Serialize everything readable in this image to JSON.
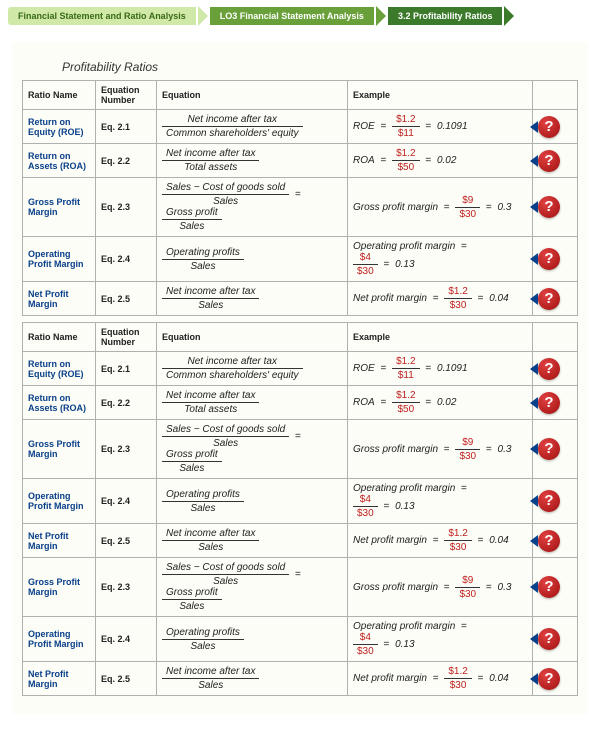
{
  "breadcrumb": {
    "item1": "Financial Statement and Ratio Analysis",
    "item2": "LO3  Financial Statement Analysis",
    "item3": "3.2  Profitability Ratios"
  },
  "section_title": "Profitability Ratios",
  "headers": {
    "name": "Ratio Name",
    "eqnum": "Equation Number",
    "eq": "Equation",
    "ex": "Example"
  },
  "rows": {
    "roe": {
      "name": "Return on Equity (ROE)",
      "eqnum": "Eq. 2.1",
      "eq_num": "Net income after tax",
      "eq_den": "Common shareholders' equity",
      "ex_label": "ROE",
      "ex_num": "$1.2",
      "ex_den": "$11",
      "ex_val": "0.1091"
    },
    "roa": {
      "name": "Return on Assets (ROA)",
      "eqnum": "Eq. 2.2",
      "eq_num": "Net income after tax",
      "eq_den": "Total assets",
      "ex_label": "ROA",
      "ex_num": "$1.2",
      "ex_den": "$50",
      "ex_val": "0.02"
    },
    "gpm": {
      "name": "Gross Profit Margin",
      "eqnum": "Eq. 2.3",
      "eq_num1": "Sales − Cost of goods sold",
      "eq_den1": "Sales",
      "eq_num2": "Gross profit",
      "eq_den2": "Sales",
      "ex_label": "Gross profit margin",
      "ex_num": "$9",
      "ex_den": "$30",
      "ex_val": "0.3"
    },
    "opm": {
      "name": "Operating Profit Margin",
      "eqnum": "Eq. 2.4",
      "eq_num": "Operating profits",
      "eq_den": "Sales",
      "ex_label": "Operating profit margin",
      "ex_num": "$4",
      "ex_den": "$30",
      "ex_val": "0.13"
    },
    "npm": {
      "name": "Net Profit Margin",
      "eqnum": "Eq. 2.5",
      "eq_num": "Net income after tax",
      "eq_den": "Sales",
      "ex_label": "Net profit margin",
      "ex_num": "$1.2",
      "ex_den": "$30",
      "ex_val": "0.04"
    }
  },
  "help_glyph": "?"
}
